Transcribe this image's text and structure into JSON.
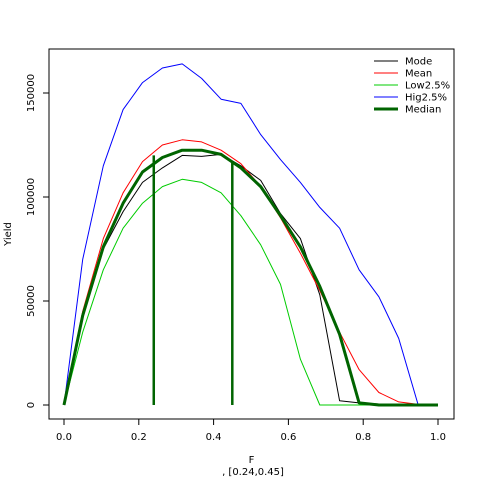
{
  "chart_data": {
    "type": "line",
    "title": "",
    "xlabel": "F",
    "xsublabel": ", [0.24,0.45]",
    "ylabel": "Yield",
    "xlim": [
      0,
      1
    ],
    "ylim": [
      0,
      165000
    ],
    "xticks": [
      0.0,
      0.2,
      0.4,
      0.6,
      0.8,
      1.0
    ],
    "xtick_labels": [
      "0.0",
      "0.2",
      "0.4",
      "0.6",
      "0.8",
      "1.0"
    ],
    "yticks": [
      0,
      50000,
      100000,
      150000
    ],
    "ytick_labels": [
      "0",
      "50000",
      "100000",
      "150000"
    ],
    "grid": false,
    "legend_position": "top-right",
    "x": [
      0.0,
      0.05,
      0.105,
      0.158,
      0.21,
      0.263,
      0.316,
      0.368,
      0.42,
      0.473,
      0.526,
      0.579,
      0.632,
      0.684,
      0.737,
      0.789,
      0.842,
      0.895,
      0.947,
      1.0
    ],
    "series": [
      {
        "name": "Mode",
        "color": "#000000",
        "width": 1,
        "values": [
          0,
          42000,
          75000,
          93000,
          107000,
          114000,
          120000,
          119500,
          120500,
          115000,
          108000,
          92000,
          80000,
          53000,
          2000,
          1000,
          500,
          0,
          0,
          0
        ]
      },
      {
        "name": "Mean",
        "color": "#ff0000",
        "width": 1,
        "values": [
          0,
          45000,
          80000,
          102000,
          117000,
          125000,
          127500,
          126500,
          122500,
          116000,
          105000,
          90000,
          73000,
          55000,
          35000,
          17000,
          6000,
          1500,
          300,
          0
        ]
      },
      {
        "name": "Low2.5%",
        "color": "#00cc00",
        "width": 1,
        "values": [
          0,
          35000,
          65000,
          85000,
          97000,
          105000,
          108500,
          107000,
          102000,
          91000,
          77000,
          58000,
          22000,
          0,
          0,
          0,
          0,
          0,
          0,
          0
        ]
      },
      {
        "name": "Hig2.5%",
        "color": "#0000ff",
        "width": 1,
        "values": [
          0,
          70000,
          115000,
          142000,
          155000,
          162000,
          164000,
          157000,
          147000,
          145000,
          130000,
          118000,
          107000,
          95000,
          85000,
          65000,
          52000,
          32000,
          0,
          0
        ]
      },
      {
        "name": "Median",
        "color": "#006400",
        "width": 3,
        "values": [
          0,
          43000,
          76000,
          97000,
          112000,
          119000,
          122500,
          122500,
          120500,
          114000,
          105000,
          91000,
          76000,
          57000,
          34000,
          1000,
          0,
          0,
          0,
          0
        ]
      }
    ],
    "vertical_lines": [
      {
        "x": 0.24,
        "y_top": 120000,
        "color": "#006400"
      },
      {
        "x": 0.45,
        "y_top": 117000,
        "color": "#006400"
      }
    ]
  }
}
